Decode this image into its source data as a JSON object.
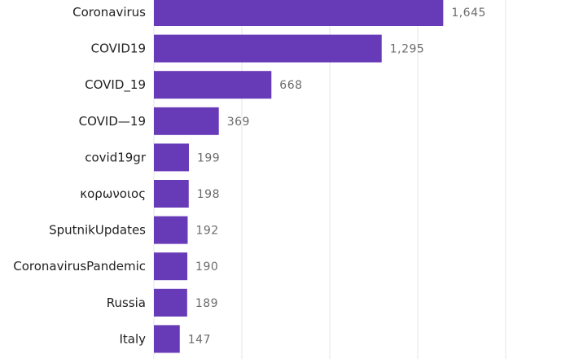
{
  "chart_data": {
    "type": "bar",
    "orientation": "horizontal",
    "categories": [
      "Coronavirus",
      "COVID19",
      "COVID_19",
      "COVID—19",
      "covid19gr",
      "κορωνοιος",
      "SputnikUpdates",
      "CoronavirusPandemic",
      "Russia",
      "Italy"
    ],
    "values": [
      1645,
      1295,
      668,
      369,
      199,
      198,
      192,
      190,
      189,
      147
    ],
    "value_labels": [
      "1,645",
      "1,295",
      "668",
      "369",
      "199",
      "198",
      "192",
      "190",
      "189",
      "147"
    ],
    "xlim": [
      0,
      2000
    ],
    "gridlines_at": [
      0,
      500,
      1000,
      1500,
      2000
    ],
    "grid": true,
    "bar_color": "#673ab7",
    "title": "",
    "xlabel": "",
    "ylabel": ""
  }
}
